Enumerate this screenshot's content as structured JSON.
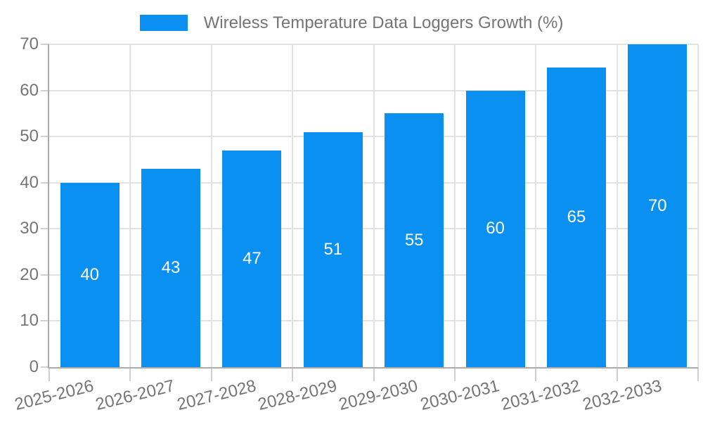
{
  "chart_data": {
    "type": "bar",
    "title": "Wireless Temperature Data Loggers Growth (%)",
    "categories": [
      "2025-2026",
      "2026-2027",
      "2027-2028",
      "2028-2029",
      "2029-2030",
      "2030-2031",
      "2031-2032",
      "2032-2033"
    ],
    "values": [
      40,
      43,
      47,
      51,
      55,
      60,
      65,
      70
    ],
    "bar_value_labels": [
      "40",
      "43",
      "47",
      "51",
      "55",
      "60",
      "65",
      "70"
    ],
    "ytick_labels": [
      "0",
      "10",
      "20",
      "30",
      "40",
      "50",
      "60",
      "70"
    ],
    "yticks": [
      0,
      10,
      20,
      30,
      40,
      50,
      60,
      70
    ],
    "ylim": [
      0,
      70
    ],
    "xlabel": "",
    "ylabel": "",
    "grid": "on",
    "legend_position": "top",
    "colors": {
      "bar": "#0a90f0",
      "axis_label": "#757575",
      "legend_text": "#757575",
      "gridline": "#e2e2e2",
      "tick": "#cfcfcf",
      "axis_line": "#acacac",
      "bar_value_label": "#ffffff",
      "background": "#ffffff"
    }
  }
}
